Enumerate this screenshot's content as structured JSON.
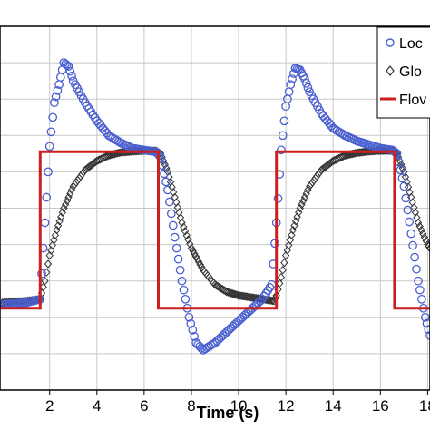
{
  "chart_data": {
    "type": "line",
    "xlabel": "Time (s)",
    "x_ticks": [
      "2",
      "4",
      "6",
      "8",
      "10",
      "12",
      "14",
      "16",
      "18"
    ],
    "xlim": [
      -0.1,
      18.1
    ],
    "ylim": [
      0,
      1
    ],
    "grid": true,
    "legend_position": "top-right",
    "series": [
      {
        "name": "Loc",
        "marker": "circle",
        "color": "#4a5fcf",
        "x": [
          0.0,
          1.0,
          1.6,
          1.8,
          2.0,
          2.2,
          2.4,
          2.6,
          2.8,
          3.0,
          3.5,
          4.0,
          4.5,
          5.0,
          5.5,
          6.0,
          6.5,
          6.7,
          7.0,
          7.3,
          7.6,
          7.9,
          8.2,
          8.5,
          9.0,
          9.5,
          10.0,
          10.5,
          11.0,
          11.4,
          11.6,
          11.8,
          12.0,
          12.2,
          12.4,
          12.6,
          12.8,
          13.0,
          13.5,
          14.0,
          14.5,
          15.0,
          15.5,
          16.0,
          16.5,
          16.7,
          17.0,
          17.3,
          17.6,
          17.9,
          18.1
        ],
        "y": [
          0.235,
          0.24,
          0.25,
          0.46,
          0.67,
          0.79,
          0.84,
          0.9,
          0.89,
          0.85,
          0.79,
          0.74,
          0.7,
          0.68,
          0.665,
          0.66,
          0.655,
          0.64,
          0.55,
          0.42,
          0.3,
          0.2,
          0.13,
          0.11,
          0.13,
          0.16,
          0.19,
          0.22,
          0.25,
          0.29,
          0.46,
          0.66,
          0.78,
          0.84,
          0.885,
          0.88,
          0.855,
          0.82,
          0.76,
          0.72,
          0.7,
          0.685,
          0.675,
          0.665,
          0.66,
          0.65,
          0.56,
          0.43,
          0.3,
          0.2,
          0.15
        ]
      },
      {
        "name": "Glo",
        "marker": "diamond",
        "color": "#333333",
        "x": [
          0.0,
          1.0,
          1.6,
          1.8,
          2.0,
          2.3,
          2.6,
          3.0,
          3.5,
          4.0,
          4.5,
          5.0,
          5.5,
          6.0,
          6.5,
          6.7,
          7.0,
          7.3,
          7.6,
          8.0,
          8.5,
          9.0,
          9.5,
          10.0,
          10.5,
          11.0,
          11.5,
          11.6,
          11.8,
          12.0,
          12.3,
          12.6,
          13.0,
          13.5,
          14.0,
          14.5,
          15.0,
          15.5,
          16.0,
          16.5,
          16.7,
          17.0,
          17.3,
          17.6,
          18.0,
          18.1
        ],
        "y": [
          0.24,
          0.245,
          0.25,
          0.3,
          0.37,
          0.44,
          0.5,
          0.56,
          0.605,
          0.63,
          0.645,
          0.653,
          0.656,
          0.658,
          0.658,
          0.65,
          0.6,
          0.53,
          0.46,
          0.39,
          0.33,
          0.29,
          0.27,
          0.26,
          0.255,
          0.25,
          0.245,
          0.26,
          0.31,
          0.37,
          0.44,
          0.5,
          0.56,
          0.605,
          0.63,
          0.645,
          0.652,
          0.656,
          0.658,
          0.658,
          0.65,
          0.6,
          0.53,
          0.46,
          0.4,
          0.39
        ]
      },
      {
        "name": "Flov",
        "marker": "line",
        "color": "#cc1f1f",
        "x": [
          -0.1,
          1.6,
          1.6,
          6.6,
          6.6,
          11.6,
          11.6,
          16.6,
          16.6,
          18.1
        ],
        "y": [
          0.225,
          0.225,
          0.655,
          0.655,
          0.225,
          0.225,
          0.655,
          0.655,
          0.225,
          0.225
        ]
      }
    ]
  }
}
